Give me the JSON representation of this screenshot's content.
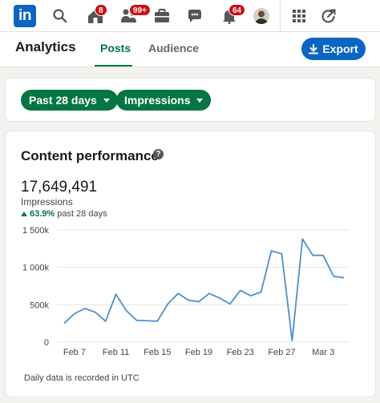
{
  "nav": {
    "logo_text": "in",
    "notifications_badge": "8",
    "network_badge": "99+",
    "messaging_badge": "64"
  },
  "header": {
    "title": "Analytics",
    "tabs": [
      {
        "label": "Posts"
      },
      {
        "label": "Audience"
      }
    ],
    "export_label": "Export"
  },
  "filters": {
    "period_label": "Past 28 days",
    "metric_label": "Impressions"
  },
  "card": {
    "title": "Content performance",
    "help_glyph": "?",
    "total": "17,649,491",
    "metric": "Impressions",
    "change_pct": "63.9%",
    "change_period": "past 28 days",
    "footnote": "Daily data is recorded in UTC"
  },
  "colors": {
    "brand_blue": "#0a66c2",
    "green": "#057642",
    "badge_red": "#cc1016",
    "line": "#4d8fcc"
  },
  "chart_data": {
    "type": "line",
    "x": [
      "Feb 6",
      "Feb 7",
      "Feb 8",
      "Feb 9",
      "Feb 10",
      "Feb 11",
      "Feb 12",
      "Feb 13",
      "Feb 14",
      "Feb 15",
      "Feb 16",
      "Feb 17",
      "Feb 18",
      "Feb 19",
      "Feb 20",
      "Feb 21",
      "Feb 22",
      "Feb 23",
      "Feb 24",
      "Feb 25",
      "Feb 26",
      "Feb 27",
      "Feb 28",
      "Mar 1",
      "Mar 2",
      "Mar 3",
      "Mar 4",
      "Mar 5"
    ],
    "series": [
      {
        "values": [
          250000,
          380000,
          450000,
          400000,
          280000,
          640000,
          420000,
          290000,
          285000,
          280000,
          510000,
          650000,
          560000,
          540000,
          650000,
          590000,
          510000,
          690000,
          620000,
          670000,
          1220000,
          1180000,
          20000,
          1380000,
          1160000,
          1160000,
          880000,
          860000
        ]
      }
    ],
    "x_tick_labels": [
      "Feb 7",
      "Feb 11",
      "Feb 15",
      "Feb 19",
      "Feb 23",
      "Feb 27",
      "Mar 3"
    ],
    "x_tick_index": [
      1,
      5,
      9,
      13,
      17,
      21,
      25
    ],
    "y_ticks": [
      0,
      500000,
      1000000,
      1500000
    ],
    "y_tick_labels": [
      "0",
      "500k",
      "1 000k",
      "1 500k"
    ],
    "ylim": [
      0,
      1500000
    ],
    "grid": true,
    "legend": "none"
  }
}
